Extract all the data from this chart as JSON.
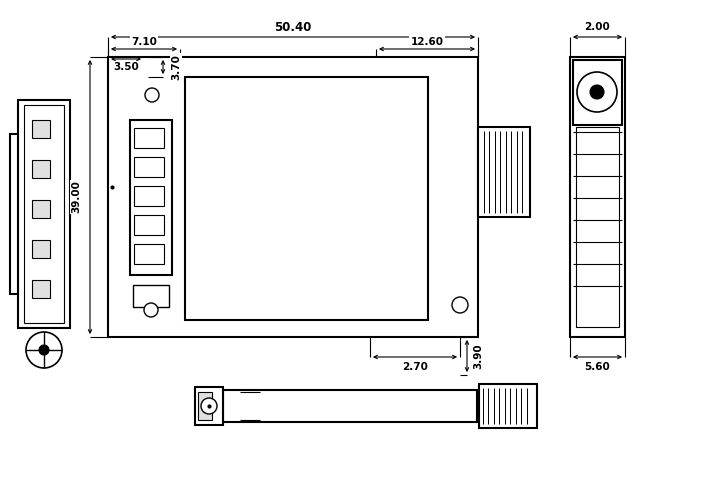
{
  "bg_color": "#ffffff",
  "line_color": "#000000",
  "fig_width": 7.25,
  "fig_height": 5.01,
  "dpi": 100
}
